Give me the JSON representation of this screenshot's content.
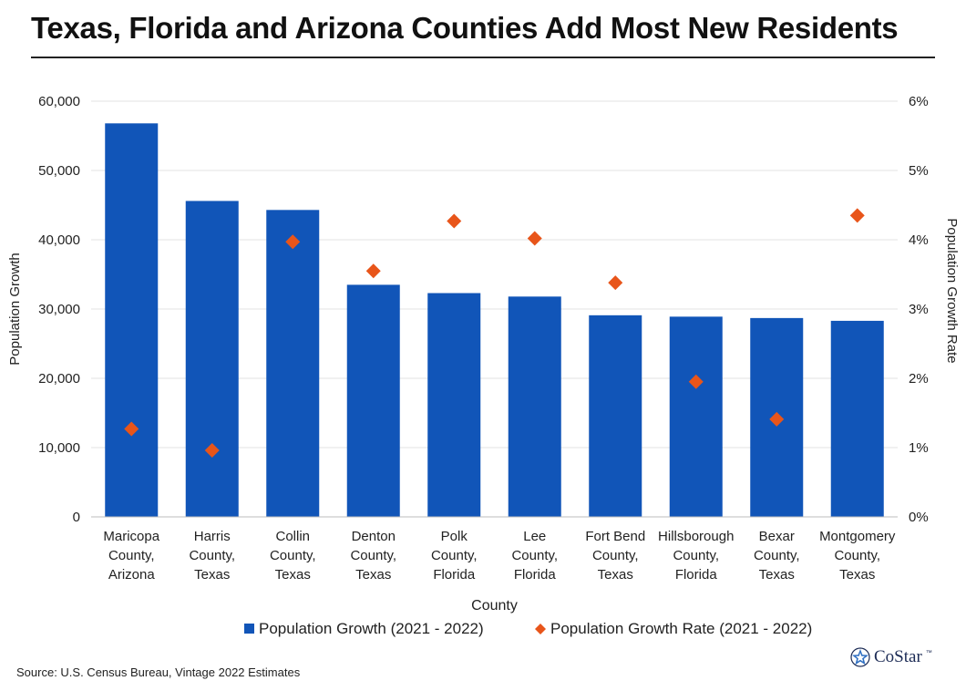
{
  "header": {
    "title": "Texas, Florida and Arizona Counties Add Most New Residents"
  },
  "footer": {
    "source": "Source: U.S. Census Bureau, Vintage 2022 Estimates",
    "logo_text": "CoStar",
    "logo_tm": "™"
  },
  "colors": {
    "bar": "#1155b8",
    "marker": "#e8551a",
    "grid": "#e3e3e3",
    "axis": "#bdbdbd"
  },
  "chart_data": {
    "type": "bar",
    "title": "Texas, Florida and Arizona Counties Add Most New Residents",
    "xlabel": "County",
    "ylabel": "Population Growth",
    "y2label": "Population Growth Rate",
    "ylim": [
      0,
      60000
    ],
    "y2lim": [
      0,
      6
    ],
    "yticks": [
      "0",
      "10,000",
      "20,000",
      "30,000",
      "40,000",
      "50,000",
      "60,000"
    ],
    "y2ticks": [
      "0%",
      "1%",
      "2%",
      "3%",
      "4%",
      "5%",
      "6%"
    ],
    "categories": [
      [
        "Maricopa",
        "County,",
        "Arizona"
      ],
      [
        "Harris",
        "County,",
        "Texas"
      ],
      [
        "Collin",
        "County,",
        "Texas"
      ],
      [
        "Denton",
        "County,",
        "Texas"
      ],
      [
        "Polk",
        "County,",
        "Florida"
      ],
      [
        "Lee",
        "County,",
        "Florida"
      ],
      [
        "Fort Bend",
        "County,",
        "Texas"
      ],
      [
        "Hillsborough",
        "County,",
        "Florida"
      ],
      [
        "Bexar",
        "County,",
        "Texas"
      ],
      [
        "Montgomery",
        "County,",
        "Texas"
      ]
    ],
    "series": [
      {
        "name": "Population Growth (2021 - 2022)",
        "type": "bar",
        "axis": "left",
        "values": [
          56800,
          45600,
          44300,
          33500,
          32300,
          31800,
          29100,
          28900,
          28700,
          28300
        ]
      },
      {
        "name": "Population Growth Rate (2021 - 2022)",
        "type": "scatter",
        "axis": "right",
        "values": [
          1.27,
          0.96,
          3.97,
          3.55,
          4.27,
          4.02,
          3.38,
          1.95,
          1.41,
          4.35
        ]
      }
    ],
    "legend": "bottom-center",
    "grid": true
  }
}
